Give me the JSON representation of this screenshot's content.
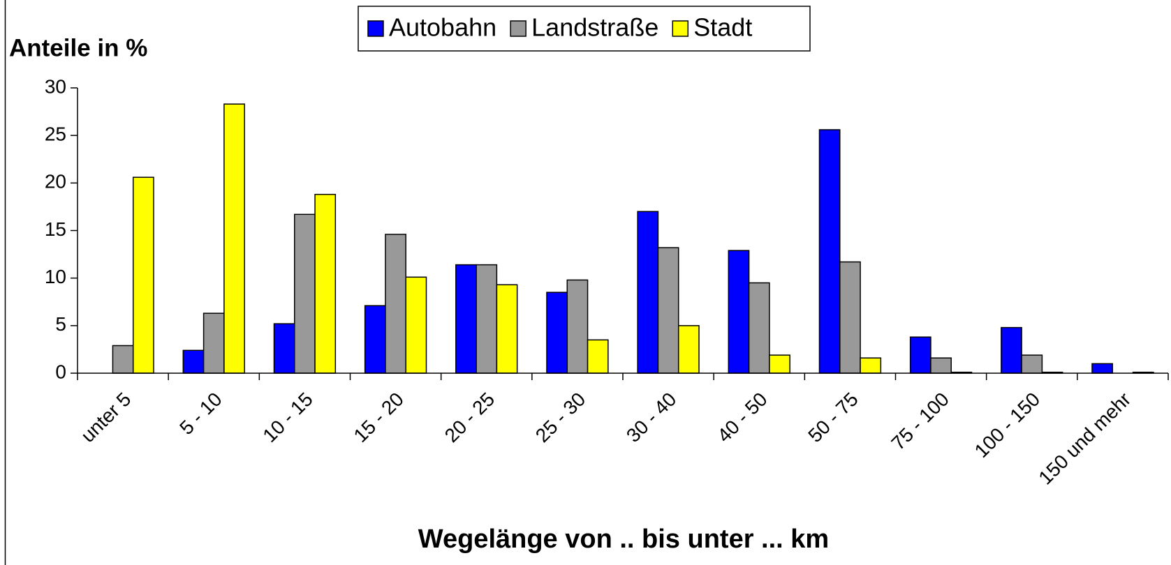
{
  "chart_data": {
    "type": "bar",
    "title": "Anteile in %",
    "x_label": "Wegelänge von .. bis unter ... km",
    "categories": [
      "unter 5",
      "5 - 10",
      "10 - 15",
      "15 - 20",
      "20 - 25",
      "25 - 30",
      "30 - 40",
      "40 - 50",
      "50 - 75",
      "75 - 100",
      "100 - 150",
      "150 und mehr"
    ],
    "series": [
      {
        "name": "Autobahn",
        "color": "#0000ff",
        "values": [
          0,
          2.4,
          5.2,
          7.1,
          11.4,
          8.5,
          17.0,
          12.9,
          25.6,
          3.8,
          4.8,
          1.0
        ]
      },
      {
        "name": "Landstraße",
        "color": "#999999",
        "values": [
          2.9,
          6.3,
          16.7,
          14.6,
          11.4,
          9.8,
          13.2,
          9.5,
          11.7,
          1.6,
          1.9,
          0
        ]
      },
      {
        "name": "Stadt",
        "color": "#ffff00",
        "values": [
          20.6,
          28.3,
          18.8,
          10.1,
          9.3,
          3.5,
          5.0,
          1.9,
          1.6,
          0.1,
          0.1,
          0.1
        ]
      }
    ],
    "ylim": [
      0,
      30
    ],
    "yticks": [
      0,
      5,
      10,
      15,
      20,
      25,
      30
    ],
    "grid": false,
    "legend": "top"
  }
}
